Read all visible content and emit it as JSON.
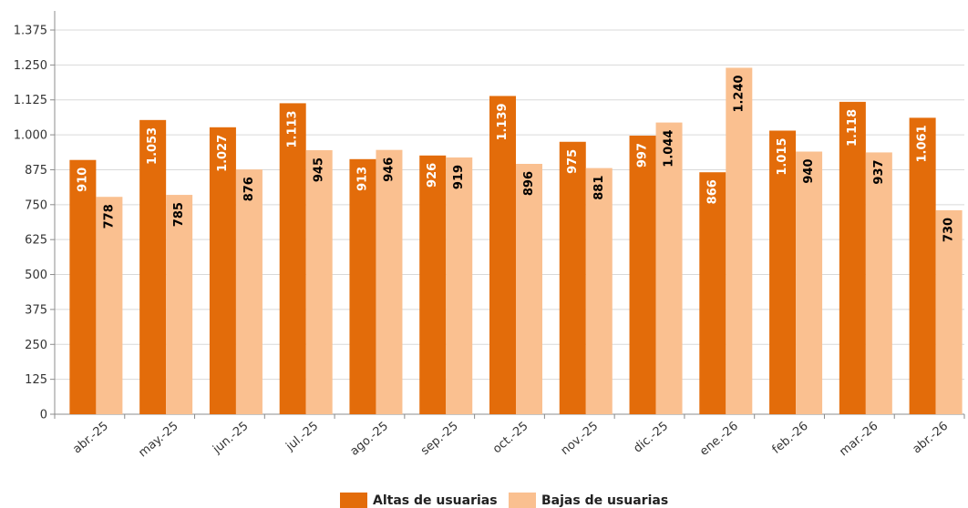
{
  "chart_data": {
    "type": "bar",
    "categories": [
      "abr.-25",
      "may.-25",
      "jun.-25",
      "jul.-25",
      "ago.-25",
      "sep.-25",
      "oct.-25",
      "nov.-25",
      "dic.-25",
      "ene.-26",
      "feb.-26",
      "mar.-26",
      "abr.-26"
    ],
    "series": [
      {
        "name": "Altas de usuarias",
        "color": "#E36C0A",
        "label_color": "#ffffff",
        "values": [
          910,
          1053,
          1027,
          1113,
          913,
          926,
          1139,
          975,
          997,
          866,
          1015,
          1118,
          1061
        ],
        "labels": [
          "910",
          "1.053",
          "1.027",
          "1.113",
          "913",
          "926",
          "1.139",
          "975",
          "997",
          "866",
          "1.015",
          "1.118",
          "1.061"
        ]
      },
      {
        "name": "Bajas de usuarias",
        "color": "#FAC090",
        "label_color": "#000000",
        "values": [
          778,
          785,
          876,
          945,
          946,
          919,
          896,
          881,
          1044,
          1240,
          940,
          937,
          730
        ],
        "labels": [
          "778",
          "785",
          "876",
          "945",
          "946",
          "919",
          "896",
          "881",
          "1.044",
          "1.240",
          "940",
          "937",
          "730"
        ]
      }
    ],
    "y_ticks": [
      0,
      125,
      250,
      375,
      500,
      625,
      750,
      875,
      1000,
      1125,
      1250,
      1375
    ],
    "y_tick_labels": [
      "0",
      "125",
      "250",
      "375",
      "500",
      "625",
      "750",
      "875",
      "1.000",
      "1.125",
      "1.250",
      "1.375"
    ],
    "ylim": [
      0,
      1375
    ],
    "grid": true,
    "legend_position": "bottom-center"
  }
}
